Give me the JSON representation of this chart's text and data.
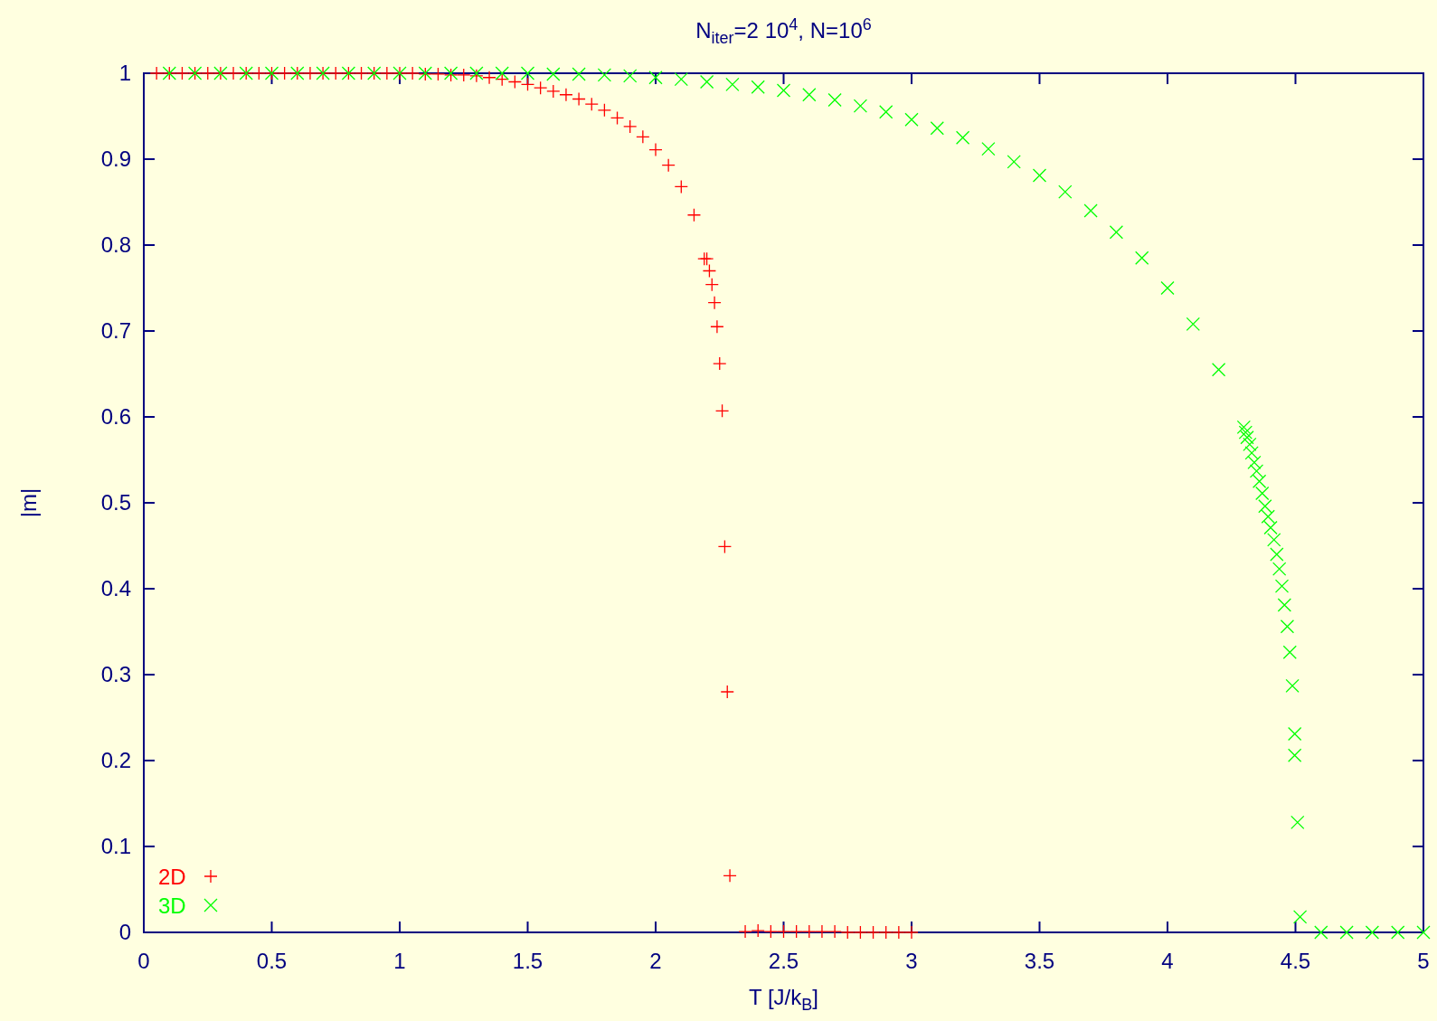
{
  "chart_data": {
    "type": "scatter",
    "title": "N$_{iter}$=2 10$^{4}$, N=10$^{6}$",
    "xlabel": "T [J/k$_{B}$]",
    "ylabel": "|m|",
    "xlim": [
      0,
      5
    ],
    "xticks": [
      0,
      0.5,
      1,
      1.5,
      2,
      2.5,
      3,
      3.5,
      4,
      4.5,
      5
    ],
    "ylim": [
      0,
      1
    ],
    "yticks": [
      0,
      0.1,
      0.2,
      0.3,
      0.4,
      0.5,
      0.6,
      0.7,
      0.8,
      0.9,
      1
    ],
    "grid": false,
    "legend": "bottom left",
    "series": [
      {
        "name": "2D",
        "color": "#ff0000",
        "marker": "plus",
        "x": [
          0.05,
          0.1,
          0.15,
          0.2,
          0.25,
          0.3,
          0.35,
          0.4,
          0.45,
          0.5,
          0.55,
          0.6,
          0.65,
          0.7,
          0.75,
          0.8,
          0.85,
          0.9,
          0.95,
          1,
          1.05,
          1.1,
          1.15,
          1.2,
          1.25,
          1.3,
          1.35,
          1.4,
          1.45,
          1.5,
          1.55,
          1.6,
          1.65,
          1.7,
          1.75,
          1.8,
          1.85,
          1.9,
          1.95,
          2,
          2.05,
          2.1,
          2.15,
          2.19,
          2.2,
          2.21,
          2.22,
          2.23,
          2.24,
          2.25,
          2.26,
          2.27,
          2.28,
          2.29,
          2.35,
          2.4,
          2.45,
          2.5,
          2.55,
          2.6,
          2.65,
          2.7,
          2.75,
          2.8,
          2.85,
          2.9,
          2.95,
          3
        ],
        "values": [
          1,
          1,
          1,
          1,
          1,
          1,
          1,
          1,
          1,
          1,
          1,
          1,
          1,
          1,
          1,
          1,
          1,
          1,
          1,
          1,
          1,
          0.999,
          0.999,
          0.998,
          0.998,
          0.997,
          0.995,
          0.993,
          0.99,
          0.987,
          0.983,
          0.979,
          0.975,
          0.97,
          0.964,
          0.957,
          0.948,
          0.938,
          0.926,
          0.911,
          0.893,
          0.868,
          0.835,
          0.784,
          0.784,
          0.77,
          0.754,
          0.733,
          0.705,
          0.662,
          0.607,
          0.449,
          0.28,
          0.066,
          0.001,
          0.002,
          0.001,
          0.001,
          0.001,
          0.001,
          0.001,
          0.001,
          0,
          0,
          0,
          0,
          0,
          0
        ]
      },
      {
        "name": "3D",
        "color": "#00ff00",
        "marker": "cross",
        "x": [
          0.1,
          0.2,
          0.3,
          0.4,
          0.5,
          0.6,
          0.7,
          0.8,
          0.9,
          1,
          1.1,
          1.2,
          1.3,
          1.4,
          1.5,
          1.6,
          1.7,
          1.8,
          1.9,
          2,
          2.1,
          2.2,
          2.3,
          2.4,
          2.5,
          2.6,
          2.7,
          2.8,
          2.9,
          3,
          3.1,
          3.2,
          3.3,
          3.4,
          3.5,
          3.6,
          3.7,
          3.8,
          3.9,
          4,
          4.1,
          4.2,
          4.298,
          4.305,
          4.311,
          4.321,
          4.329,
          4.339,
          4.348,
          4.359,
          4.37,
          4.381,
          4.393,
          4.403,
          4.416,
          4.427,
          4.437,
          4.447,
          4.457,
          4.468,
          4.478,
          4.488,
          4.497,
          4.497,
          4.508,
          4.518,
          4.6,
          4.7,
          4.8,
          4.9,
          5
        ],
        "values": [
          1,
          1,
          1,
          1,
          1,
          1,
          1,
          1,
          1,
          1,
          1,
          1,
          1,
          1,
          1,
          0.999,
          0.999,
          0.998,
          0.997,
          0.995,
          0.993,
          0.99,
          0.987,
          0.984,
          0.98,
          0.975,
          0.969,
          0.962,
          0.955,
          0.946,
          0.936,
          0.925,
          0.912,
          0.897,
          0.881,
          0.862,
          0.84,
          0.815,
          0.785,
          0.75,
          0.708,
          0.655,
          0.588,
          0.582,
          0.576,
          0.568,
          0.558,
          0.547,
          0.537,
          0.525,
          0.511,
          0.496,
          0.484,
          0.471,
          0.457,
          0.44,
          0.423,
          0.403,
          0.381,
          0.356,
          0.326,
          0.287,
          0.231,
          0.206,
          0.128,
          0.018,
          0,
          0,
          0,
          0,
          0
        ]
      }
    ]
  }
}
